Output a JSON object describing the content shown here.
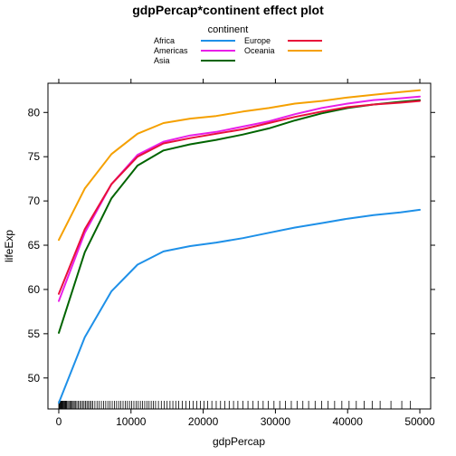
{
  "chart_data": {
    "type": "line",
    "title": "gdpPercap*continent effect plot",
    "xlabel": "gdpPercap",
    "ylabel": "lifeExp",
    "xlim": [
      -1500,
      51500
    ],
    "ylim": [
      46.5,
      83.3
    ],
    "x_ticks": [
      0,
      10000,
      20000,
      30000,
      40000,
      50000
    ],
    "y_ticks": [
      50,
      55,
      60,
      65,
      70,
      75,
      80
    ],
    "grid": false,
    "legend": {
      "title": "continent",
      "position": "top",
      "columns": [
        [
          "Africa",
          "Americas",
          "Asia"
        ],
        [
          "Europe",
          "Oceania"
        ]
      ]
    },
    "x": [
      0,
      3600,
      7300,
      10900,
      14500,
      18200,
      21800,
      25500,
      29100,
      32700,
      36400,
      40000,
      43600,
      47300,
      50000
    ],
    "series": [
      {
        "name": "Africa",
        "color": "#1E90E8",
        "values": [
          47.2,
          54.6,
          59.8,
          62.8,
          64.3,
          64.9,
          65.3,
          65.8,
          66.4,
          67.0,
          67.5,
          68.0,
          68.4,
          68.7,
          69.0
        ]
      },
      {
        "name": "Americas",
        "color": "#E81FE8",
        "values": [
          58.7,
          66.4,
          71.9,
          75.2,
          76.7,
          77.4,
          77.8,
          78.4,
          79.0,
          79.8,
          80.5,
          81.0,
          81.4,
          81.6,
          81.8
        ]
      },
      {
        "name": "Asia",
        "color": "#006400",
        "values": [
          55.1,
          64.2,
          70.3,
          74.0,
          75.7,
          76.4,
          76.9,
          77.5,
          78.2,
          79.1,
          79.9,
          80.5,
          80.9,
          81.2,
          81.4
        ]
      },
      {
        "name": "Europe",
        "color": "#E8103A",
        "values": [
          59.5,
          66.8,
          71.9,
          75.0,
          76.5,
          77.1,
          77.6,
          78.1,
          78.8,
          79.5,
          80.1,
          80.6,
          80.9,
          81.1,
          81.3
        ]
      },
      {
        "name": "Oceania",
        "color": "#F5A000",
        "values": [
          65.6,
          71.4,
          75.3,
          77.6,
          78.8,
          79.3,
          79.6,
          80.1,
          80.5,
          81.0,
          81.3,
          81.7,
          82.0,
          82.3,
          82.5
        ]
      }
    ],
    "rug": [
      0,
      80,
      160,
      250,
      330,
      420,
      500,
      600,
      700,
      800,
      900,
      1000,
      1100,
      1250,
      1400,
      1550,
      1700,
      1850,
      2000,
      2150,
      2300,
      2500,
      2700,
      2900,
      3100,
      3300,
      3500,
      3700,
      3900,
      4100,
      4300,
      4500,
      4700,
      5000,
      5300,
      5600,
      5900,
      6200,
      6500,
      6800,
      7100,
      7400,
      7700,
      8000,
      8300,
      8600,
      8900,
      9200,
      9500,
      9800,
      10100,
      10400,
      10700,
      11000,
      11300,
      11600,
      11900,
      12200,
      12500,
      12800,
      13100,
      13400,
      13800,
      14200,
      14600,
      15000,
      15400,
      15800,
      16200,
      16600,
      17100,
      17600,
      18100,
      18600,
      19100,
      19600,
      20100,
      20600,
      21200,
      21800,
      22400,
      23000,
      23600,
      24200,
      24800,
      25500,
      26200,
      26900,
      27600,
      28300,
      29000,
      29800,
      30600,
      31400,
      32200,
      33000,
      33800,
      34600,
      35500,
      36400,
      37300,
      38200,
      39200,
      40200,
      41200,
      42300,
      43400,
      44500,
      46000,
      47500,
      48700
    ]
  }
}
